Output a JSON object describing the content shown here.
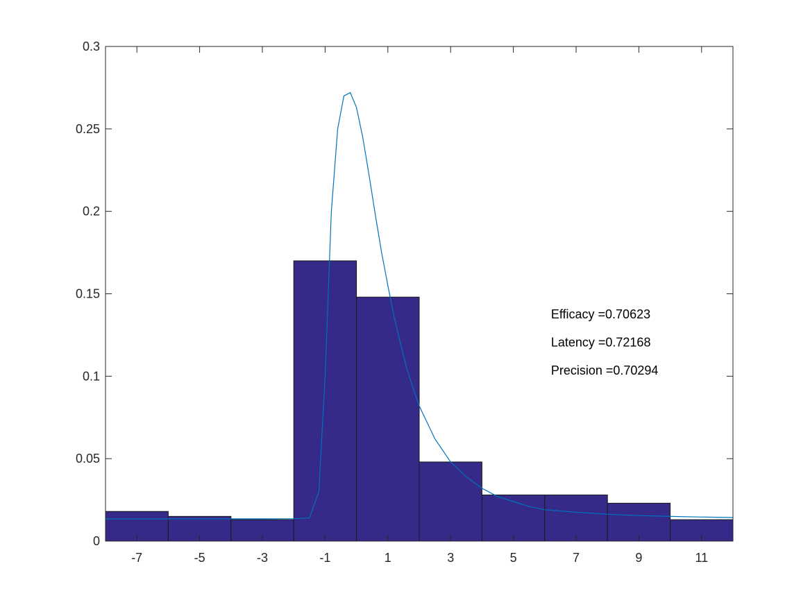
{
  "chart_data": {
    "type": "bar",
    "title": "",
    "xlabel": "",
    "ylabel": "",
    "xlim": [
      -8,
      12
    ],
    "ylim": [
      0,
      0.3
    ],
    "grid": false,
    "bin_edges": [
      -8,
      -6,
      -4,
      -2,
      0,
      2,
      4,
      6,
      8,
      10,
      12
    ],
    "bin_centers": [
      -7,
      -5,
      -3,
      -1,
      1,
      3,
      5,
      7,
      9,
      11
    ],
    "values": [
      0.018,
      0.015,
      0.013,
      0.17,
      0.148,
      0.048,
      0.028,
      0.028,
      0.023,
      0.013
    ],
    "x_ticks": [
      -7,
      -5,
      -3,
      -1,
      1,
      3,
      5,
      7,
      9,
      11
    ],
    "x_tick_labels": [
      "-7",
      "-5",
      "-3",
      "-1",
      "1",
      "3",
      "5",
      "7",
      "9",
      "11"
    ],
    "y_ticks": [
      0,
      0.05,
      0.1,
      0.15,
      0.2,
      0.25,
      0.3
    ],
    "y_tick_labels": [
      "0",
      "0.05",
      "0.1",
      "0.15",
      "0.2",
      "0.25",
      "0.3"
    ],
    "bar_color": "#352a87",
    "line_color": "#0072bd",
    "curve": {
      "x": [
        -8,
        -3,
        -2,
        -1.5,
        -1.2,
        -1.0,
        -0.8,
        -0.6,
        -0.4,
        -0.2,
        0,
        0.2,
        0.4,
        0.6,
        0.8,
        1.0,
        1.2,
        1.4,
        1.6,
        1.8,
        2.0,
        2.5,
        3.0,
        3.5,
        4.0,
        4.5,
        5.0,
        5.5,
        6.0,
        7.0,
        8.0,
        9.0,
        10.0,
        11.0,
        12.0
      ],
      "y": [
        0.0135,
        0.0135,
        0.0136,
        0.014,
        0.03,
        0.1,
        0.2,
        0.25,
        0.27,
        0.272,
        0.263,
        0.245,
        0.222,
        0.198,
        0.175,
        0.155,
        0.136,
        0.12,
        0.105,
        0.093,
        0.082,
        0.062,
        0.048,
        0.039,
        0.032,
        0.027,
        0.024,
        0.021,
        0.019,
        0.0175,
        0.0163,
        0.0155,
        0.015,
        0.0146,
        0.0143
      ]
    },
    "annotations": [
      {
        "text": "Efficacy =0.70623",
        "x": 6.2,
        "y": 0.135
      },
      {
        "text": "Latency =0.72168",
        "x": 6.2,
        "y": 0.118
      },
      {
        "text": "Precision =0.70294",
        "x": 6.2,
        "y": 0.101
      }
    ]
  }
}
